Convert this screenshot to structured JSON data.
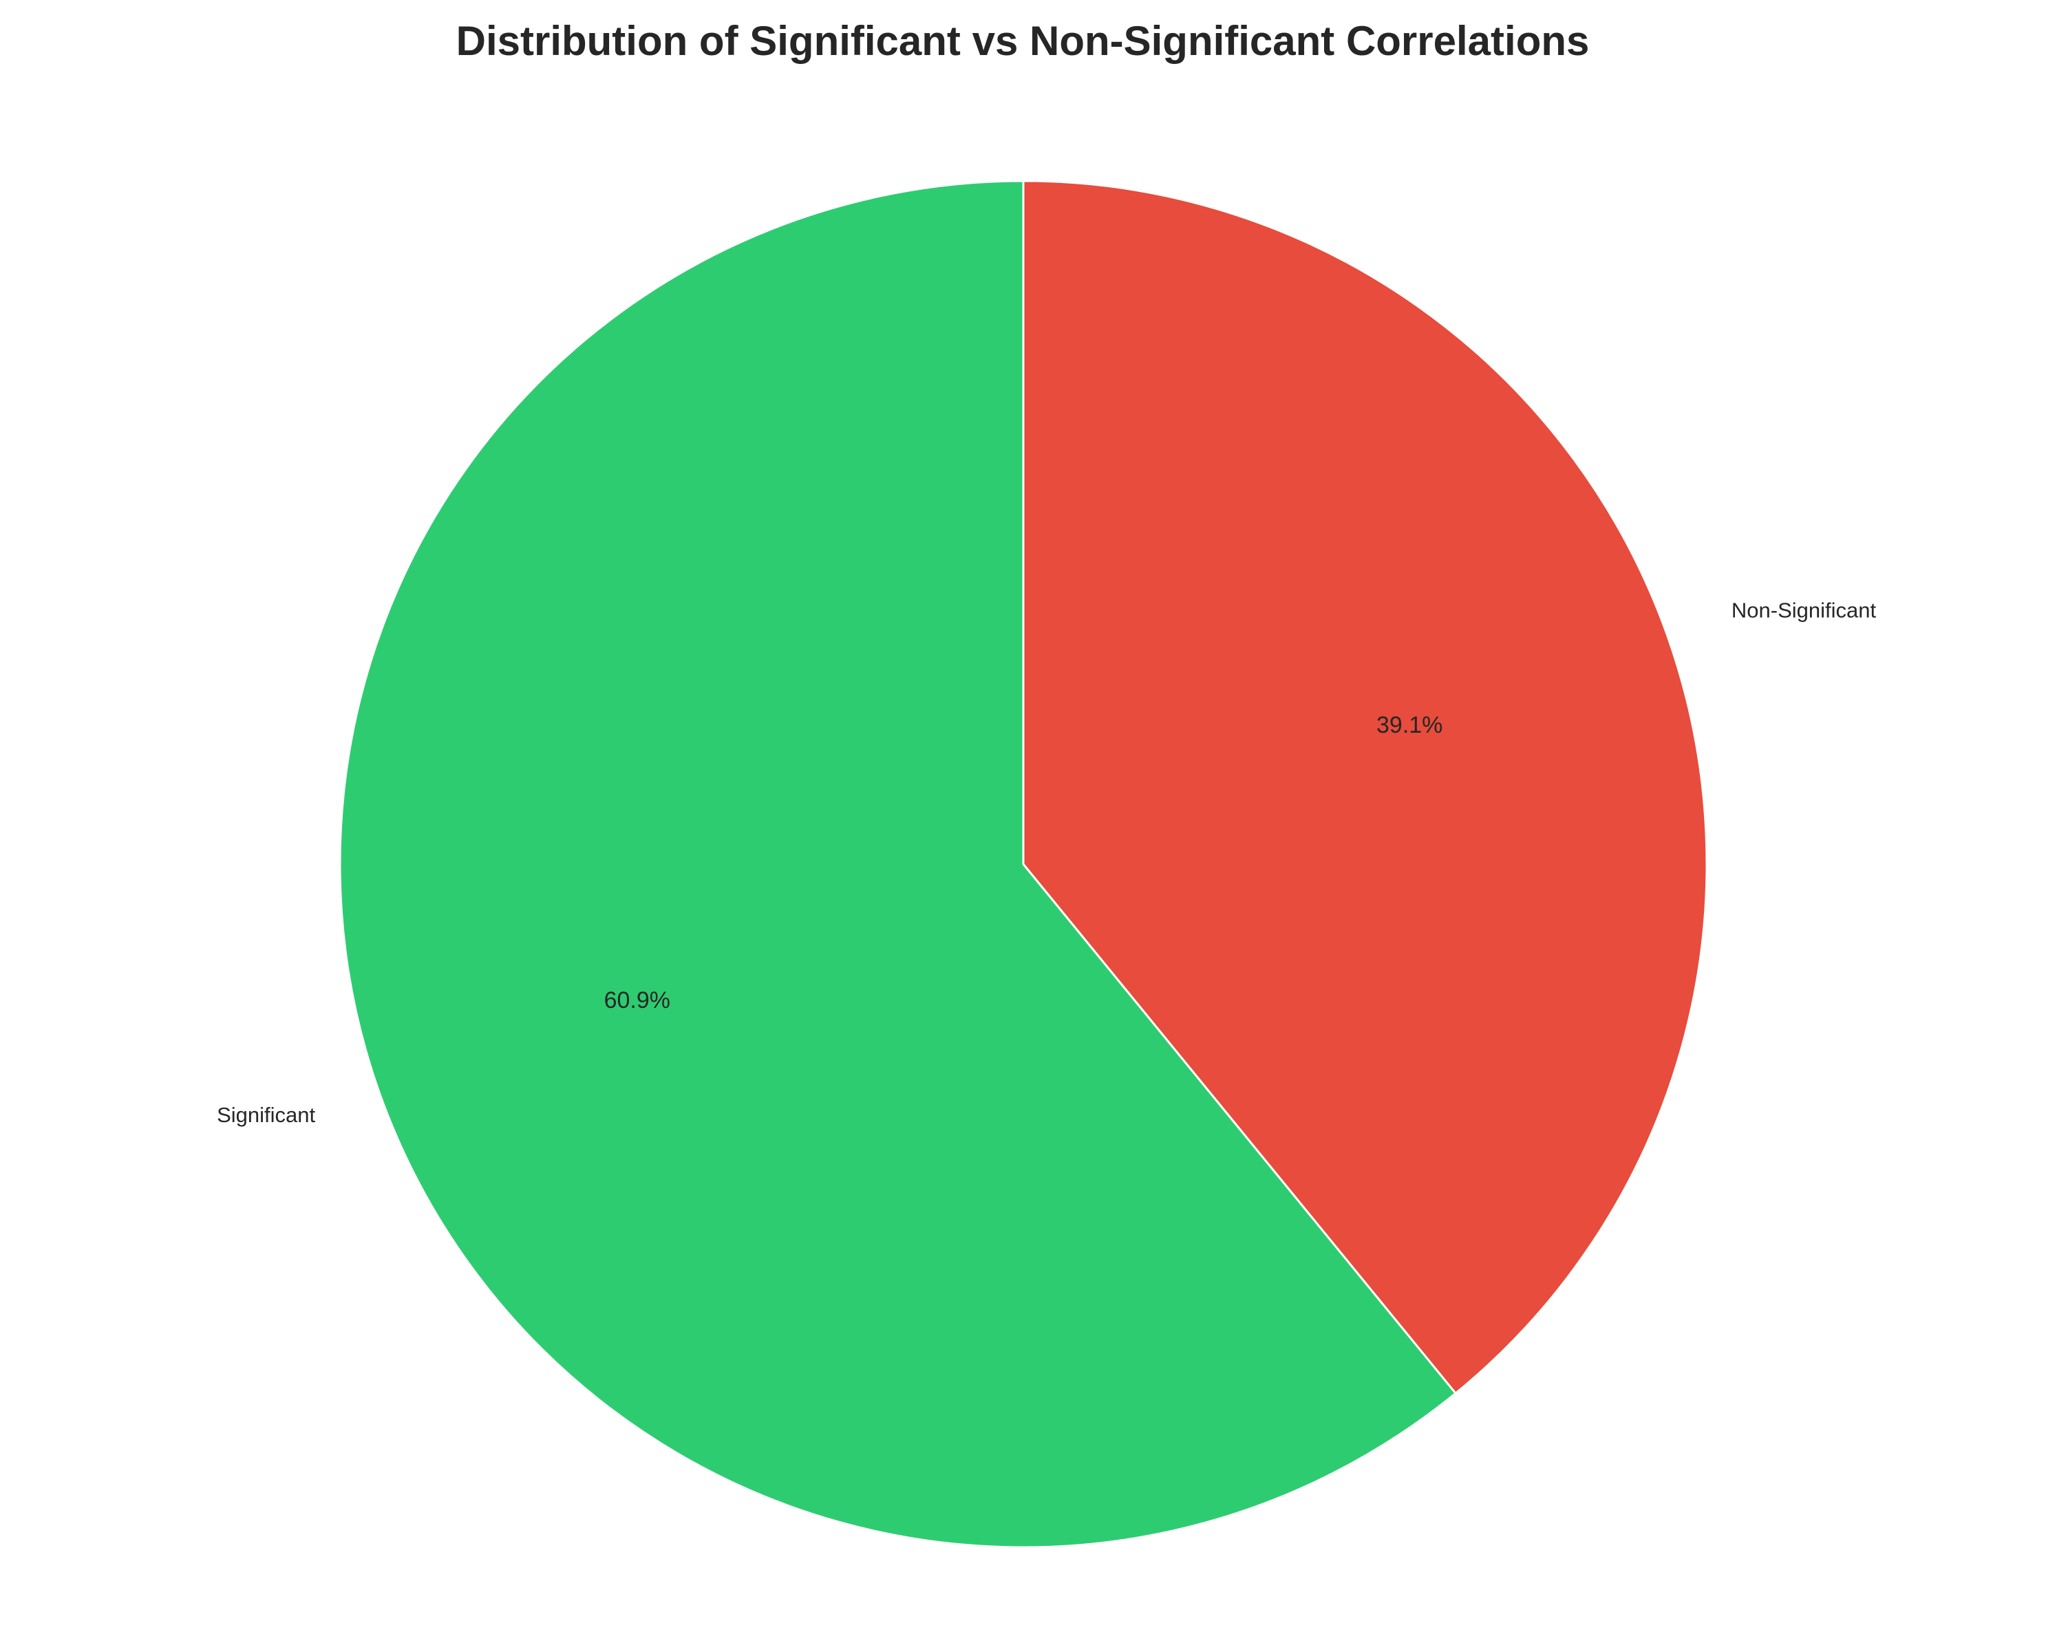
{
  "chart_data": {
    "type": "pie",
    "title": "Distribution of Significant vs Non-Significant Correlations",
    "categories": [
      "Significant",
      "Non-Significant"
    ],
    "values": [
      60.9,
      39.1
    ],
    "percent_labels": [
      "60.9%",
      "39.1%"
    ],
    "colors": [
      "#2ecc71",
      "#e74c3c"
    ],
    "edge_color": "#ffffff",
    "start_angle_deg": 90,
    "direction": "counterclockwise",
    "legend": "none",
    "grid": false
  }
}
